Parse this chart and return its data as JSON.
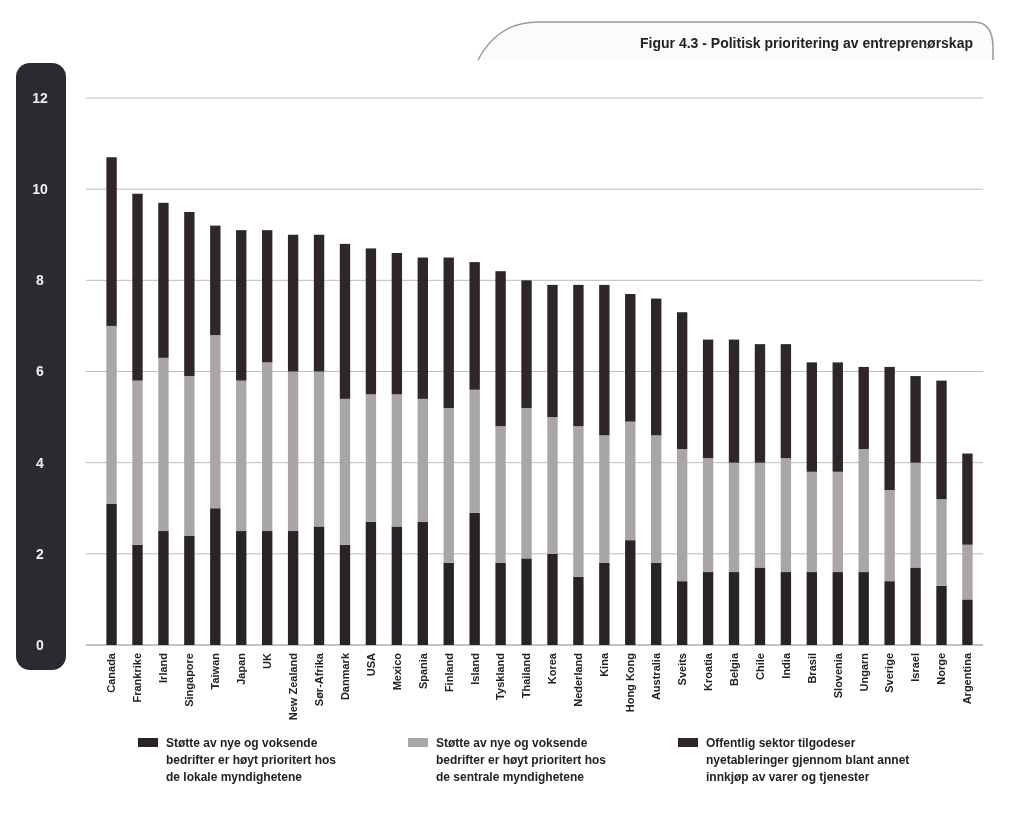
{
  "chart_data": {
    "type": "bar",
    "stacked": true,
    "title": "Figur 4.3 - Politisk prioritering av entreprenørskap",
    "categories": [
      "Canada",
      "Frankrike",
      "Irland",
      "Singapore",
      "Taiwan",
      "Japan",
      "UK",
      "New Zealand",
      "Sør-Afrika",
      "Danmark",
      "USA",
      "Mexico",
      "Spania",
      "Finland",
      "Island",
      "Tyskland",
      "Thailand",
      "Korea",
      "Nederland",
      "Kina",
      "Hong Kong",
      "Australia",
      "Sveits",
      "Kroatia",
      "Belgia",
      "Chile",
      "India",
      "Brasil",
      "Slovenia",
      "Ungarn",
      "Sverige",
      "Israel",
      "Norge",
      "Argentina"
    ],
    "series": [
      {
        "name": "Støtte av nye og voksende bedrifter er høyt prioritert hos de lokale myndighetene",
        "color": "#2a2326",
        "values": [
          3.1,
          2.2,
          2.5,
          2.4,
          3.0,
          2.5,
          2.5,
          2.5,
          2.6,
          2.2,
          2.7,
          2.6,
          2.7,
          1.8,
          2.9,
          1.8,
          1.9,
          2.0,
          1.5,
          1.8,
          2.3,
          1.8,
          1.4,
          1.6,
          1.6,
          1.7,
          1.6,
          1.6,
          1.6,
          1.6,
          1.4,
          1.7,
          1.3,
          1.0
        ]
      },
      {
        "name": "Støtte av nye og voksende bedrifter er høyt prioritert hos de sentrale myndighetene",
        "color": "#aaa5a9",
        "values": [
          3.9,
          3.6,
          3.8,
          3.5,
          3.8,
          3.3,
          3.7,
          3.5,
          3.4,
          3.2,
          2.8,
          2.9,
          2.7,
          3.4,
          2.7,
          3.0,
          3.3,
          3.0,
          3.3,
          2.8,
          2.6,
          2.8,
          2.9,
          2.5,
          2.4,
          2.3,
          2.5,
          2.2,
          2.2,
          2.7,
          2.0,
          2.3,
          1.9,
          1.2
        ]
      },
      {
        "name": "Offentlig sektor tilgodeser nyetableringer gjennom blant annet innkjøp av varer og tjenester",
        "color": "#2e2629",
        "values": [
          3.7,
          4.1,
          3.4,
          3.6,
          2.4,
          3.3,
          2.9,
          3.0,
          3.0,
          3.4,
          3.2,
          3.1,
          3.1,
          3.3,
          2.8,
          3.4,
          2.8,
          2.9,
          3.1,
          3.3,
          2.8,
          3.0,
          3.0,
          2.6,
          2.7,
          2.6,
          2.5,
          2.4,
          2.4,
          1.8,
          2.7,
          1.9,
          2.6,
          2.0
        ]
      }
    ],
    "ylim": [
      0,
      12
    ],
    "yticks": [
      0,
      2,
      4,
      6,
      8,
      10,
      12
    ],
    "grid": "y",
    "legend": "bottom"
  }
}
